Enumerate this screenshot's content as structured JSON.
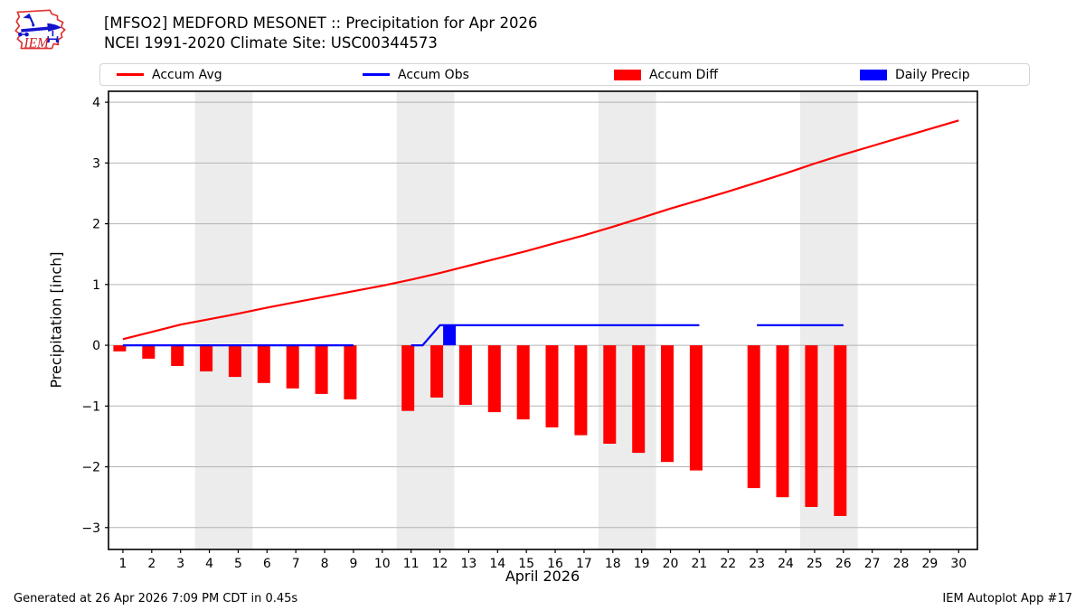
{
  "header": {
    "logo_text": "IEM",
    "title_line1": "[MFSO2] MEDFORD MESONET :: Precipitation for Apr 2026",
    "title_line2": "NCEI 1991-2020 Climate Site: USC00344573"
  },
  "legend": [
    {
      "label": "Accum Avg",
      "swatch": "line",
      "color": "#ff0000"
    },
    {
      "label": "Accum Obs",
      "swatch": "line",
      "color": "#0000ff"
    },
    {
      "label": "Accum Diff",
      "swatch": "rect",
      "color": "#ff0000"
    },
    {
      "label": "Daily Precip",
      "swatch": "rect",
      "color": "#0000ff"
    }
  ],
  "footer": {
    "left": "Generated at 26 Apr 2026 7:09 PM CDT in 0.45s",
    "right": "IEM Autoplot App #17"
  },
  "chart_data": {
    "type": "line+bar",
    "title": "[MFSO2] MEDFORD MESONET :: Precipitation for Apr 2026",
    "subtitle": "NCEI 1991-2020 Climate Site: USC00344573",
    "xlabel": "April 2026",
    "ylabel": "Precipitation [inch]",
    "xlim": [
      0.5,
      30.65
    ],
    "ylim": [
      -3.36,
      4.18
    ],
    "grid": "horizontal",
    "legend_position": "top",
    "yticks": [
      4,
      3,
      2,
      1,
      0,
      -1,
      -2,
      -3
    ],
    "xticks": [
      1,
      2,
      3,
      4,
      5,
      6,
      7,
      8,
      9,
      10,
      11,
      12,
      13,
      14,
      15,
      16,
      17,
      18,
      19,
      20,
      21,
      22,
      23,
      24,
      25,
      26,
      27,
      28,
      29,
      30
    ],
    "weekend_bands": [
      [
        3.5,
        5.5
      ],
      [
        10.5,
        12.5
      ],
      [
        17.5,
        19.5
      ],
      [
        24.5,
        26.5
      ]
    ],
    "colors": {
      "band": "#ececec",
      "grid": "#b3b3b3",
      "frame": "#000000"
    },
    "series": [
      {
        "name": "Accum Avg",
        "type": "line",
        "color": "#ff0000",
        "x": [
          1,
          2,
          3,
          4,
          5,
          6,
          7,
          8,
          9,
          10,
          11,
          12,
          13,
          14,
          15,
          16,
          17,
          18,
          19,
          20,
          21,
          22,
          23,
          24,
          25,
          26,
          27,
          28,
          29,
          30
        ],
        "values": [
          0.1,
          0.22,
          0.34,
          0.43,
          0.52,
          0.62,
          0.71,
          0.8,
          0.89,
          0.98,
          1.08,
          1.19,
          1.31,
          1.43,
          1.55,
          1.68,
          1.81,
          1.95,
          2.1,
          2.25,
          2.39,
          2.53,
          2.68,
          2.83,
          2.99,
          3.14,
          3.28,
          3.42,
          3.56,
          3.7
        ]
      },
      {
        "name": "Accum Obs",
        "type": "line",
        "color": "#0000ff",
        "segments": [
          [
            [
              1,
              0
            ],
            [
              9,
              0
            ]
          ],
          [
            [
              11,
              0
            ],
            [
              11.4,
              0
            ],
            [
              12,
              0.33
            ],
            [
              21,
              0.33
            ]
          ],
          [
            [
              23,
              0.33
            ],
            [
              26,
              0.33
            ]
          ]
        ]
      },
      {
        "name": "Accum Diff",
        "type": "bar",
        "color": "#ff0000",
        "x": [
          1,
          2,
          3,
          4,
          5,
          6,
          7,
          8,
          9,
          11,
          12,
          13,
          14,
          15,
          16,
          17,
          18,
          19,
          20,
          21,
          23,
          24,
          25,
          26
        ],
        "values": [
          -0.1,
          -0.22,
          -0.34,
          -0.43,
          -0.52,
          -0.62,
          -0.71,
          -0.8,
          -0.89,
          -1.08,
          -0.86,
          -0.98,
          -1.1,
          -1.22,
          -1.35,
          -1.48,
          -1.62,
          -1.77,
          -1.92,
          -2.06,
          -2.35,
          -2.5,
          -2.66,
          -2.81
        ]
      },
      {
        "name": "Daily Precip",
        "type": "bar",
        "color": "#0000ff",
        "x": [
          12
        ],
        "values": [
          0.33
        ]
      }
    ]
  }
}
